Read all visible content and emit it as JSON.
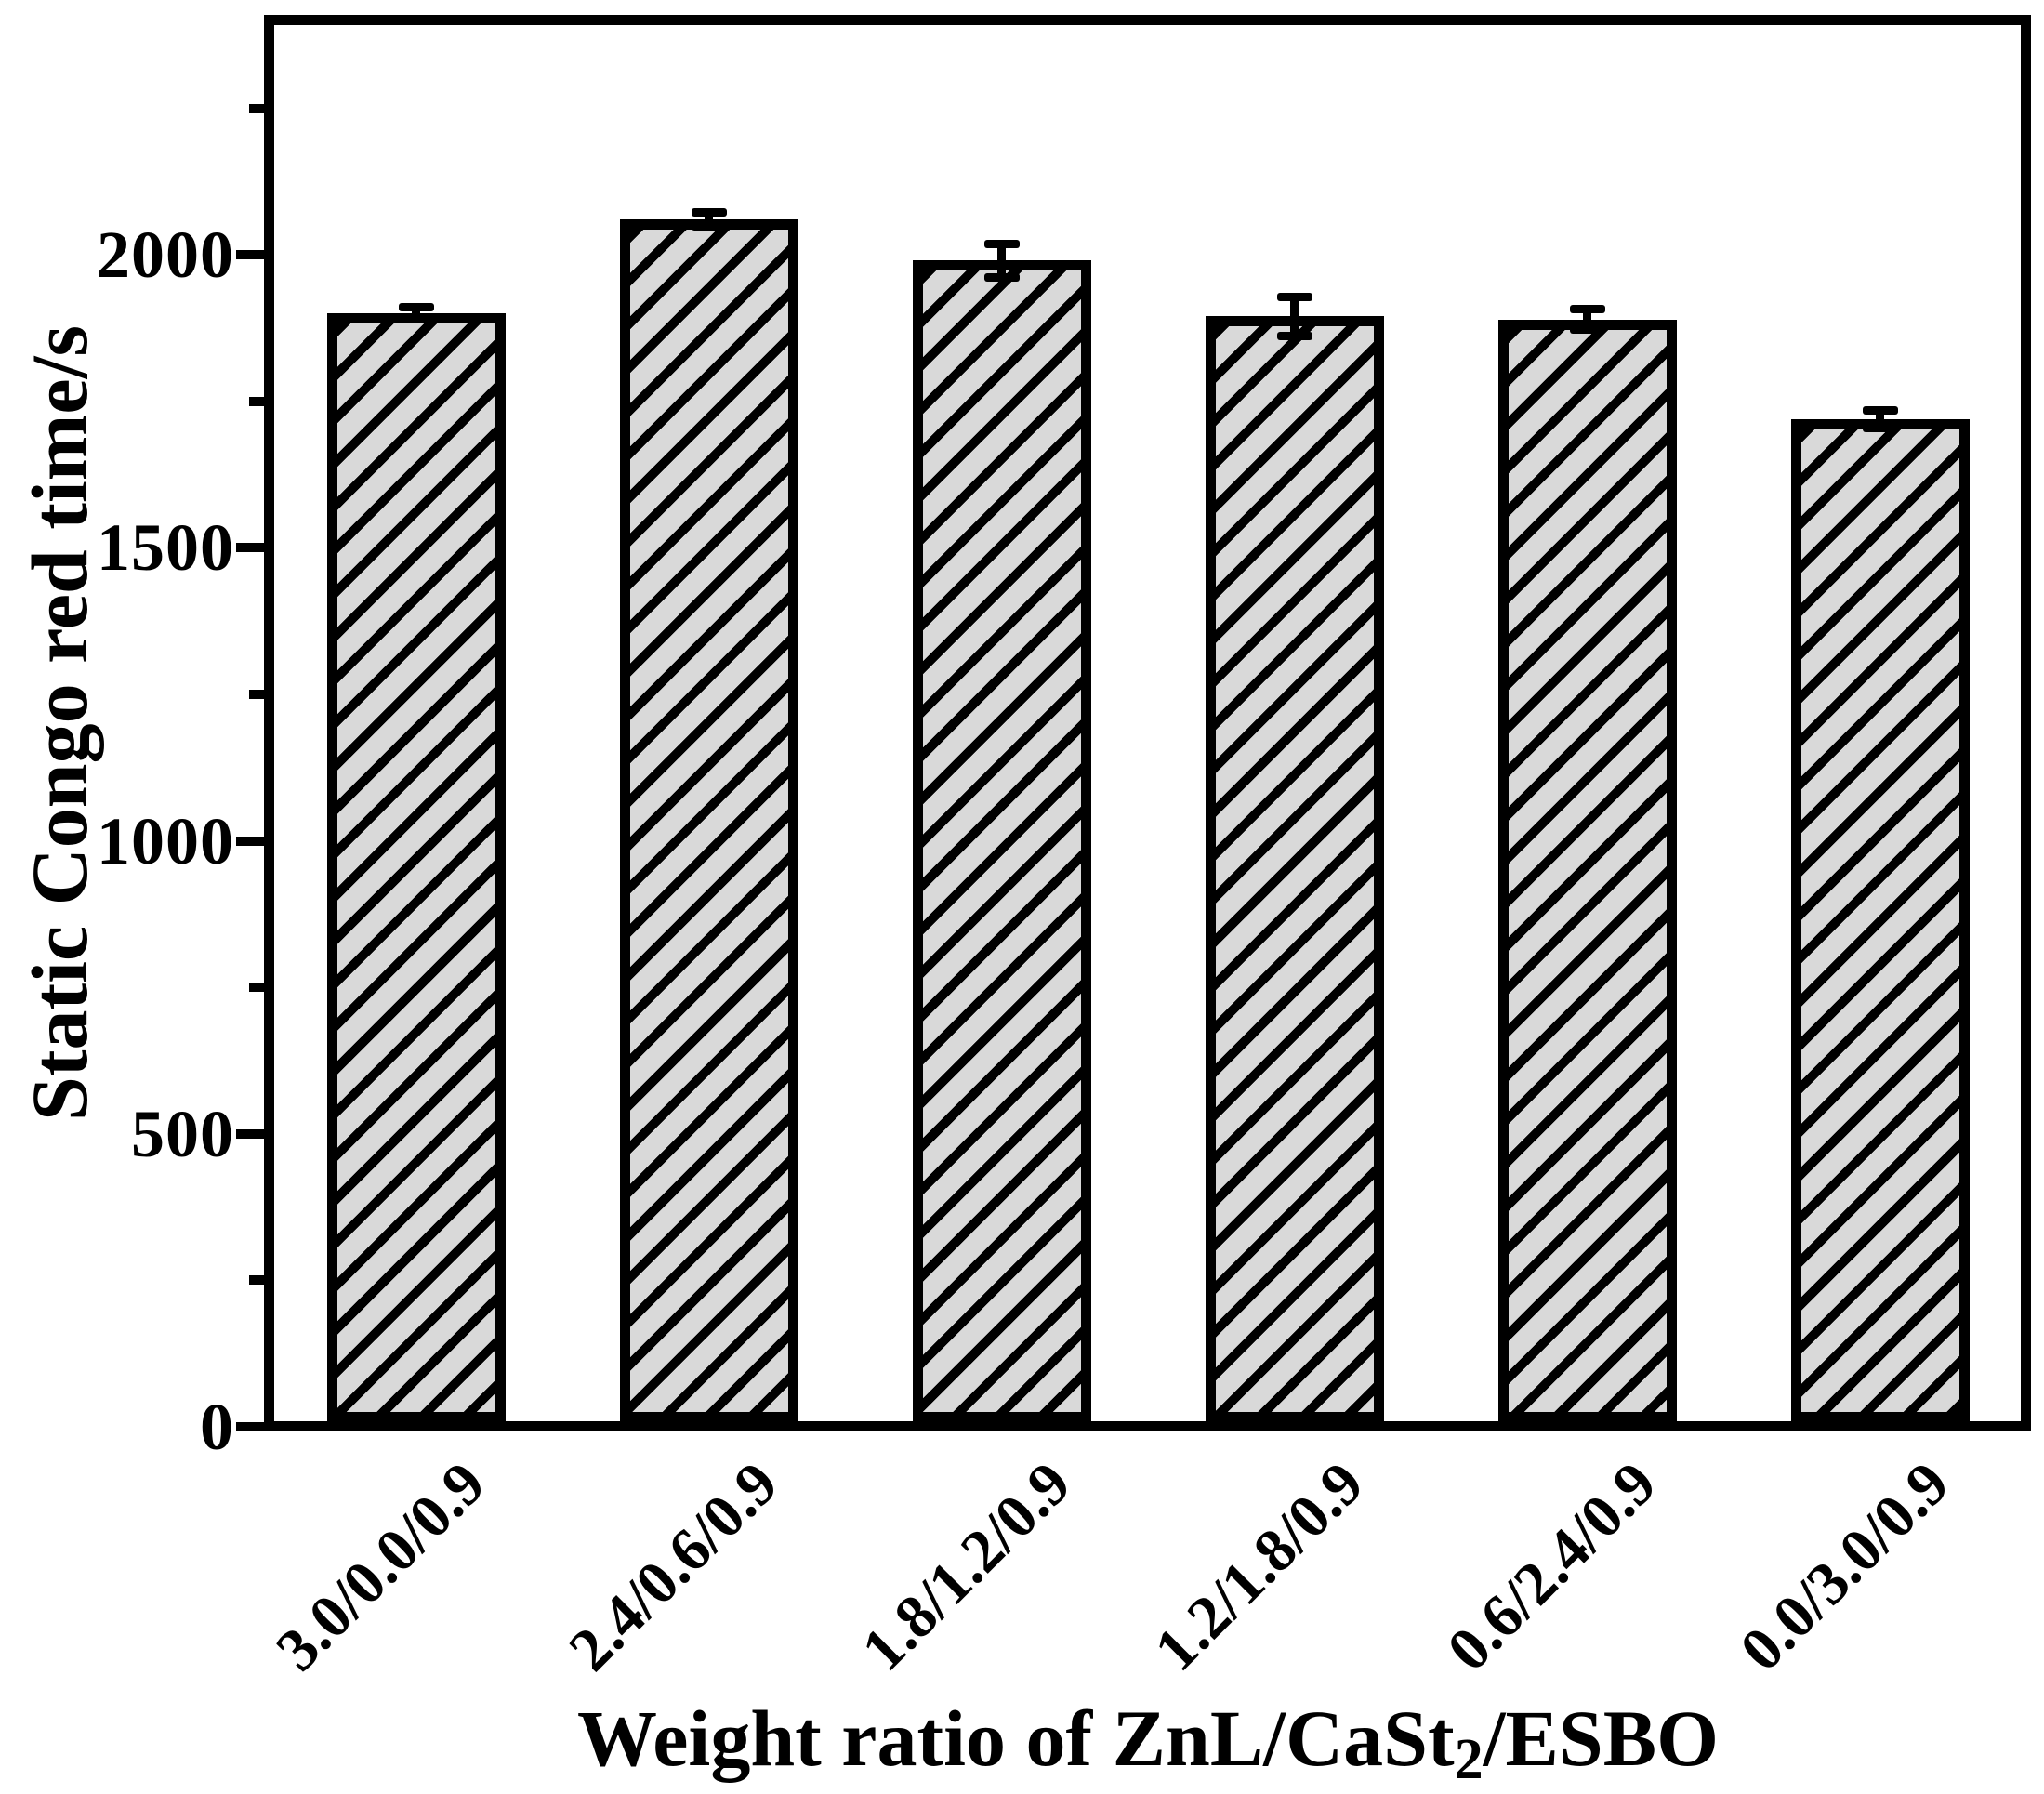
{
  "figure": {
    "background": "#ffffff",
    "frame_color": "#000000"
  },
  "chart_data": {
    "type": "bar",
    "title": "",
    "ylabel": "Static Congo red time/s",
    "xlabel": "Weight ratio of ZnL/CaSt₂/ESBO",
    "xlabel_rich": [
      {
        "text": "Weight ratio of ZnL/CaSt",
        "sub": false
      },
      {
        "text": "2",
        "sub": true
      },
      {
        "text": "/ESBO",
        "sub": false
      }
    ],
    "categories": [
      "3.0/0.0/0.9",
      "2.4/0.6/0.9",
      "1.8/1.2/0.9",
      "1.2/1.8/0.9",
      "0.6/2.4/0.9",
      "0.0/3.0/0.9"
    ],
    "values": [
      1900,
      2060,
      1990,
      1895,
      1890,
      1720
    ],
    "errors": [
      10,
      12,
      28,
      33,
      17,
      15
    ],
    "ylim": [
      0,
      2400
    ],
    "ytick_labels": [
      "0",
      "500",
      "1000",
      "1500",
      "2000"
    ],
    "yticks_major": [
      0,
      500,
      1000,
      1500,
      2000
    ],
    "yticks_minor": [
      250,
      750,
      1250,
      1750,
      2250
    ],
    "grid": false,
    "legend": null,
    "bar_fill": "#d9d9d9",
    "bar_hatch": "/",
    "bar_edge": "#000000",
    "error_color": "#000000"
  }
}
